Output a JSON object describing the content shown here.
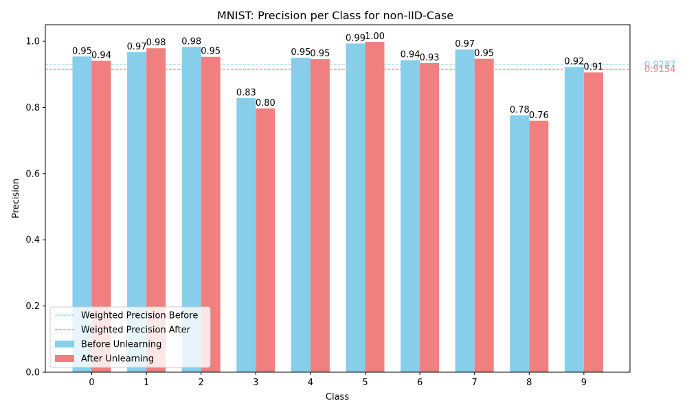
{
  "chart_data": {
    "type": "bar",
    "title": "MNIST: Precision per Class for non-IID-Case",
    "xlabel": "Class",
    "ylabel": "Precision",
    "ylim": [
      0,
      1.05
    ],
    "yticks": [
      "0.0",
      "0.2",
      "0.4",
      "0.6",
      "0.8",
      "1.0"
    ],
    "categories": [
      "0",
      "1",
      "2",
      "3",
      "4",
      "5",
      "6",
      "7",
      "8",
      "9"
    ],
    "series": [
      {
        "name": "Before Unlearning",
        "color": "#87ceeb",
        "values": [
          0.954,
          0.967,
          0.983,
          0.828,
          0.95,
          0.993,
          0.943,
          0.975,
          0.776,
          0.922
        ],
        "labels": [
          "0.95",
          "0.97",
          "0.98",
          "0.83",
          "0.95",
          "0.99",
          "0.94",
          "0.97",
          "0.78",
          "0.92"
        ]
      },
      {
        "name": "After Unlearning",
        "color": "#f08080",
        "values": [
          0.941,
          0.979,
          0.953,
          0.797,
          0.946,
          0.998,
          0.934,
          0.947,
          0.76,
          0.906
        ],
        "labels": [
          "0.94",
          "0.98",
          "0.95",
          "0.80",
          "0.95",
          "1.00",
          "0.93",
          "0.95",
          "0.76",
          "0.91"
        ]
      }
    ],
    "reference_lines": [
      {
        "name": "Weighted Precision Before",
        "value": 0.9287,
        "label": "0.9287",
        "color": "#87ceeb",
        "style": "dashed"
      },
      {
        "name": "Weighted Precision After",
        "value": 0.9154,
        "label": "0.9154",
        "color": "#f08080",
        "style": "dashed"
      }
    ],
    "legend": {
      "placement": "lower-left",
      "entries": [
        "Weighted Precision Before",
        "Weighted Precision After",
        "Before Unlearning",
        "After Unlearning"
      ]
    },
    "grid": false
  }
}
